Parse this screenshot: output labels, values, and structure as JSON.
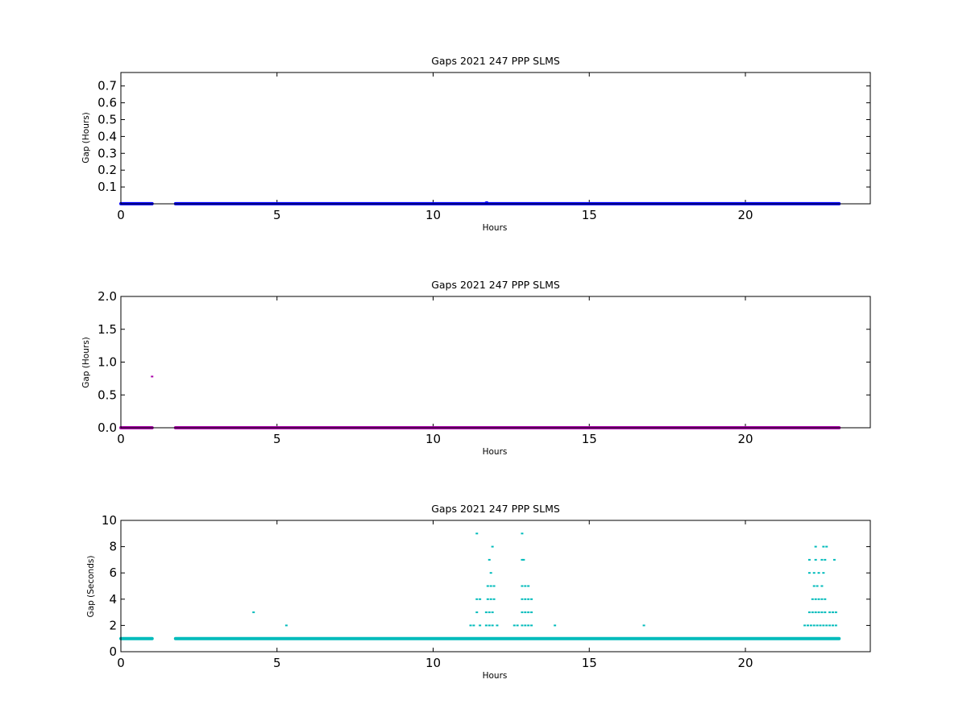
{
  "chart_data": [
    {
      "type": "scatter",
      "title": "Gaps 2021 247 PPP  SLMS",
      "xlabel": "Hours",
      "ylabel": "Gap (Hours)",
      "xlim": [
        0,
        24
      ],
      "ylim": [
        0,
        0.78
      ],
      "xticks": [
        0,
        5,
        10,
        15,
        20
      ],
      "yticks": [
        0.1,
        0.2,
        0.3,
        0.4,
        0.5,
        0.6,
        0.7
      ],
      "color": "#0000ff",
      "baseline": {
        "y": 0.0003,
        "segments": [
          [
            0,
            1.0
          ],
          [
            1.75,
            23.0
          ]
        ]
      },
      "points": [
        {
          "x": 11.65,
          "y": 0.0025
        },
        {
          "x": 11.68,
          "y": 0.005
        },
        {
          "x": 11.7,
          "y": 0.008
        },
        {
          "x": 11.72,
          "y": 0.01
        },
        {
          "x": 11.75,
          "y": 0.004
        },
        {
          "x": 12.85,
          "y": 0.0025
        },
        {
          "x": 22.25,
          "y": 0.0025
        },
        {
          "x": 22.45,
          "y": 0.0015
        }
      ]
    },
    {
      "type": "scatter",
      "title": "Gaps 2021 247 PPP  SLMS",
      "xlabel": "Hours",
      "ylabel": "Gap (Hours)",
      "xlim": [
        0,
        24
      ],
      "ylim": [
        0,
        2.0
      ],
      "xticks": [
        0,
        5,
        10,
        15,
        20
      ],
      "yticks": [
        0.0,
        0.5,
        1.0,
        1.5,
        2.0
      ],
      "color": "#aa00aa",
      "baseline": {
        "y": 0.0003,
        "segments": [
          [
            0,
            1.0
          ],
          [
            1.75,
            23.0
          ]
        ]
      },
      "points": [
        {
          "x": 1.0,
          "y": 0.78
        },
        {
          "x": 11.7,
          "y": 0.003
        }
      ]
    },
    {
      "type": "scatter",
      "title": "Gaps 2021 247 PPP  SLMS",
      "xlabel": "Hours",
      "ylabel": "Gap (Seconds)",
      "xlim": [
        0,
        24
      ],
      "ylim": [
        0,
        10
      ],
      "xticks": [
        0,
        5,
        10,
        15,
        20
      ],
      "yticks": [
        0,
        2,
        4,
        6,
        8,
        10
      ],
      "color": "#00bbbb",
      "baseline": {
        "y": 1,
        "segments": [
          [
            0,
            1.0
          ],
          [
            1.75,
            23.0
          ]
        ]
      },
      "points": [
        {
          "x": 4.25,
          "y": 3
        },
        {
          "x": 5.3,
          "y": 2
        },
        {
          "x": 11.4,
          "y": 9
        },
        {
          "x": 11.9,
          "y": 8
        },
        {
          "x": 11.8,
          "y": 7
        },
        {
          "x": 11.85,
          "y": 6
        },
        {
          "x": 11.75,
          "y": 5
        },
        {
          "x": 11.85,
          "y": 5
        },
        {
          "x": 11.95,
          "y": 5
        },
        {
          "x": 11.4,
          "y": 4
        },
        {
          "x": 11.5,
          "y": 4
        },
        {
          "x": 11.75,
          "y": 4
        },
        {
          "x": 11.85,
          "y": 4
        },
        {
          "x": 11.95,
          "y": 4
        },
        {
          "x": 11.4,
          "y": 3
        },
        {
          "x": 11.7,
          "y": 3
        },
        {
          "x": 11.8,
          "y": 3
        },
        {
          "x": 11.9,
          "y": 3
        },
        {
          "x": 11.2,
          "y": 2
        },
        {
          "x": 11.3,
          "y": 2
        },
        {
          "x": 11.5,
          "y": 2
        },
        {
          "x": 11.7,
          "y": 2
        },
        {
          "x": 11.8,
          "y": 2
        },
        {
          "x": 11.9,
          "y": 2
        },
        {
          "x": 12.05,
          "y": 2
        },
        {
          "x": 12.85,
          "y": 9
        },
        {
          "x": 12.85,
          "y": 7
        },
        {
          "x": 12.9,
          "y": 7
        },
        {
          "x": 12.85,
          "y": 5
        },
        {
          "x": 12.95,
          "y": 5
        },
        {
          "x": 13.05,
          "y": 5
        },
        {
          "x": 12.85,
          "y": 4
        },
        {
          "x": 12.95,
          "y": 4
        },
        {
          "x": 13.05,
          "y": 4
        },
        {
          "x": 13.15,
          "y": 4
        },
        {
          "x": 12.85,
          "y": 3
        },
        {
          "x": 12.95,
          "y": 3
        },
        {
          "x": 13.05,
          "y": 3
        },
        {
          "x": 13.15,
          "y": 3
        },
        {
          "x": 12.6,
          "y": 2
        },
        {
          "x": 12.7,
          "y": 2
        },
        {
          "x": 12.85,
          "y": 2
        },
        {
          "x": 12.95,
          "y": 2
        },
        {
          "x": 13.05,
          "y": 2
        },
        {
          "x": 13.15,
          "y": 2
        },
        {
          "x": 13.9,
          "y": 2
        },
        {
          "x": 16.75,
          "y": 2
        },
        {
          "x": 22.25,
          "y": 8
        },
        {
          "x": 22.5,
          "y": 8
        },
        {
          "x": 22.6,
          "y": 8
        },
        {
          "x": 22.05,
          "y": 7
        },
        {
          "x": 22.25,
          "y": 7
        },
        {
          "x": 22.45,
          "y": 7
        },
        {
          "x": 22.55,
          "y": 7
        },
        {
          "x": 22.85,
          "y": 7
        },
        {
          "x": 22.05,
          "y": 6
        },
        {
          "x": 22.2,
          "y": 6
        },
        {
          "x": 22.35,
          "y": 6
        },
        {
          "x": 22.5,
          "y": 6
        },
        {
          "x": 22.2,
          "y": 5
        },
        {
          "x": 22.3,
          "y": 5
        },
        {
          "x": 22.45,
          "y": 5
        },
        {
          "x": 22.15,
          "y": 4
        },
        {
          "x": 22.25,
          "y": 4
        },
        {
          "x": 22.35,
          "y": 4
        },
        {
          "x": 22.45,
          "y": 4
        },
        {
          "x": 22.55,
          "y": 4
        },
        {
          "x": 22.05,
          "y": 3
        },
        {
          "x": 22.15,
          "y": 3
        },
        {
          "x": 22.25,
          "y": 3
        },
        {
          "x": 22.35,
          "y": 3
        },
        {
          "x": 22.45,
          "y": 3
        },
        {
          "x": 22.55,
          "y": 3
        },
        {
          "x": 22.7,
          "y": 3
        },
        {
          "x": 22.8,
          "y": 3
        },
        {
          "x": 22.9,
          "y": 3
        },
        {
          "x": 21.9,
          "y": 2
        },
        {
          "x": 22.0,
          "y": 2
        },
        {
          "x": 22.1,
          "y": 2
        },
        {
          "x": 22.2,
          "y": 2
        },
        {
          "x": 22.3,
          "y": 2
        },
        {
          "x": 22.4,
          "y": 2
        },
        {
          "x": 22.5,
          "y": 2
        },
        {
          "x": 22.6,
          "y": 2
        },
        {
          "x": 22.7,
          "y": 2
        },
        {
          "x": 22.8,
          "y": 2
        },
        {
          "x": 22.9,
          "y": 2
        }
      ]
    }
  ]
}
